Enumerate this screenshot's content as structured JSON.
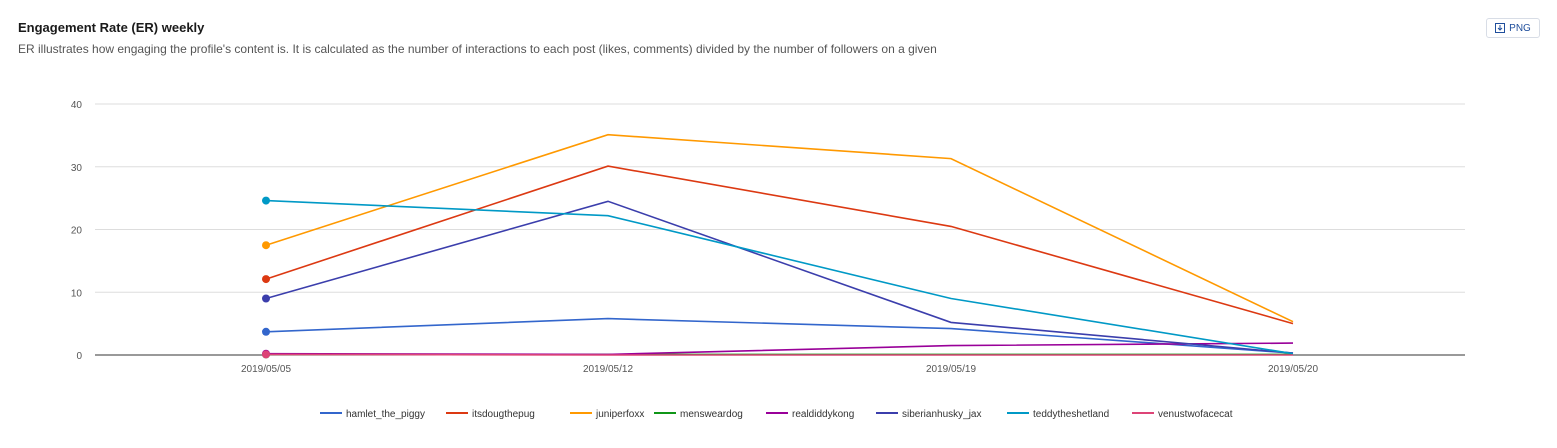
{
  "header": {
    "title": "Engagement Rate (ER) weekly",
    "subtitle": "ER illustrates how engaging the profile's content is. It is calculated as the number of interactions to each post (likes, comments) divided by the number of followers on a given",
    "png_label": "PNG",
    "png_icon": "download-icon"
  },
  "chart_data": {
    "type": "line",
    "title": "Engagement Rate (ER) weekly",
    "xlabel": "",
    "ylabel": "",
    "categories": [
      "2019/05/05",
      "2019/05/12",
      "2019/05/19",
      "2019/05/20"
    ],
    "ylim": [
      0,
      40
    ],
    "yticks": [
      0,
      10,
      20,
      30,
      40
    ],
    "grid": true,
    "legend": "bottom",
    "series": [
      {
        "name": "hamlet_the_piggy",
        "color": "#3366cc",
        "values": [
          3.7,
          5.8,
          4.2,
          0.3
        ]
      },
      {
        "name": "itsdougthepug",
        "color": "#dc3912",
        "values": [
          12.1,
          30.1,
          20.5,
          5.0
        ]
      },
      {
        "name": "juniperfoxx",
        "color": "#ff9900",
        "values": [
          17.5,
          35.1,
          31.3,
          5.3
        ]
      },
      {
        "name": "mensweardog",
        "color": "#109618",
        "values": [
          0.1,
          0.1,
          0.1,
          0.1
        ]
      },
      {
        "name": "realdiddykong",
        "color": "#990099",
        "values": [
          0.2,
          0.1,
          1.5,
          1.9
        ]
      },
      {
        "name": "siberianhusky_jax",
        "color": "#3b3eac",
        "values": [
          9.0,
          24.5,
          5.2,
          0.3
        ]
      },
      {
        "name": "teddytheshetland",
        "color": "#0099c6",
        "values": [
          24.6,
          22.2,
          9.0,
          0.2
        ]
      },
      {
        "name": "venustwofacecat",
        "color": "#dd4477",
        "values": [
          0.1,
          0.0,
          0.0,
          0.0
        ]
      }
    ]
  }
}
